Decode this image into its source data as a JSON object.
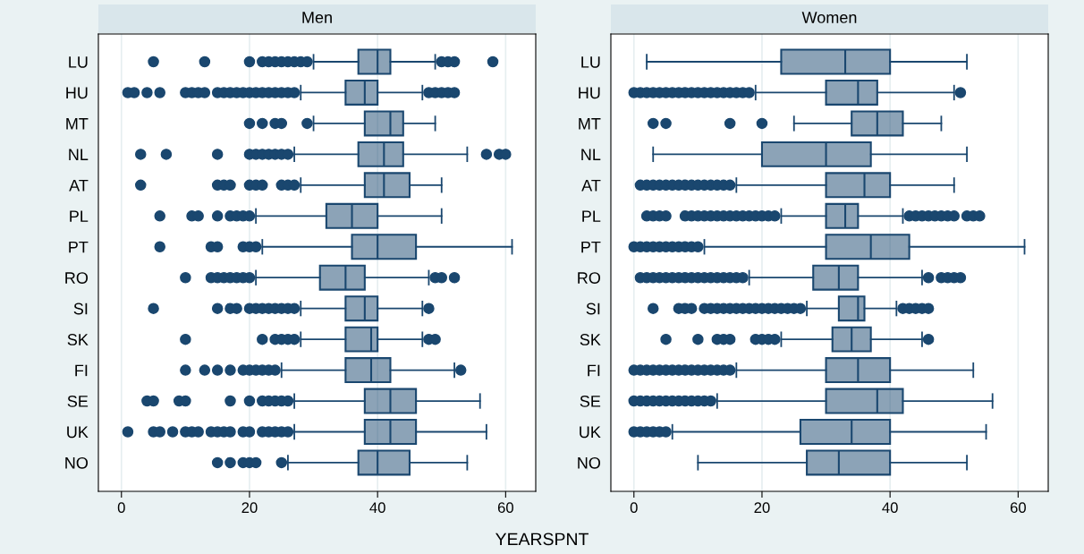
{
  "chart_data": [
    {
      "type": "box",
      "title": "Men",
      "xlabel": "YEARSPNT",
      "orientation": "horizontal",
      "color": "#1a476f",
      "grid": "x",
      "marker": "circle",
      "xlim": [
        -3.6,
        64.7
      ],
      "xticks": [
        0,
        20,
        40,
        60
      ],
      "categories": [
        "LU",
        "HU",
        "MT",
        "NL",
        "AT",
        "PL",
        "PT",
        "RO",
        "SI",
        "SK",
        "FI",
        "SE",
        "UK",
        "NO"
      ],
      "boxes": [
        {
          "low": 30,
          "q1": 37,
          "median": 40,
          "q3": 42,
          "high": 49,
          "outliers": [
            5,
            13,
            20,
            22,
            23,
            24,
            25,
            26,
            27,
            28,
            29,
            50,
            51,
            52,
            58
          ]
        },
        {
          "low": 28,
          "q1": 35,
          "median": 38,
          "q3": 40,
          "high": 47,
          "outliers": [
            1,
            2,
            4,
            6,
            10,
            11,
            12,
            13,
            15,
            16,
            17,
            18,
            19,
            20,
            21,
            22,
            23,
            24,
            25,
            26,
            27,
            48,
            49,
            50,
            51,
            52
          ]
        },
        {
          "low": 30,
          "q1": 38,
          "median": 42,
          "q3": 44,
          "high": 49,
          "outliers": [
            20,
            22,
            24,
            25,
            29
          ]
        },
        {
          "low": 27,
          "q1": 37,
          "median": 41,
          "q3": 44,
          "high": 54,
          "outliers": [
            3,
            7,
            15,
            20,
            21,
            22,
            23,
            24,
            25,
            26,
            57,
            59,
            60
          ]
        },
        {
          "low": 28,
          "q1": 38,
          "median": 41,
          "q3": 45,
          "high": 50,
          "outliers": [
            3,
            15,
            16,
            17,
            20,
            21,
            22,
            25,
            26,
            27
          ]
        },
        {
          "low": 21,
          "q1": 32,
          "median": 36,
          "q3": 40,
          "high": 50,
          "outliers": [
            6,
            11,
            12,
            15,
            17,
            18,
            19,
            20
          ]
        },
        {
          "low": 22,
          "q1": 36,
          "median": 40,
          "q3": 46,
          "high": 61,
          "outliers": [
            6,
            14,
            15,
            19,
            20,
            21
          ]
        },
        {
          "low": 21,
          "q1": 31,
          "median": 35,
          "q3": 38,
          "high": 48,
          "outliers": [
            10,
            14,
            15,
            16,
            17,
            18,
            19,
            20,
            49,
            50,
            52
          ]
        },
        {
          "low": 28,
          "q1": 35,
          "median": 38,
          "q3": 40,
          "high": 47,
          "outliers": [
            5,
            15,
            17,
            18,
            20,
            21,
            22,
            23,
            24,
            25,
            26,
            27,
            48
          ]
        },
        {
          "low": 28,
          "q1": 35,
          "median": 39,
          "q3": 40,
          "high": 47,
          "outliers": [
            10,
            22,
            24,
            25,
            26,
            27,
            48,
            49
          ]
        },
        {
          "low": 25,
          "q1": 35,
          "median": 39,
          "q3": 42,
          "high": 52,
          "outliers": [
            10,
            13,
            15,
            17,
            19,
            20,
            21,
            22,
            23,
            24,
            53
          ]
        },
        {
          "low": 27,
          "q1": 38,
          "median": 42,
          "q3": 46,
          "high": 56,
          "outliers": [
            4,
            5,
            9,
            10,
            17,
            20,
            22,
            23,
            24,
            25,
            26
          ]
        },
        {
          "low": 27,
          "q1": 38,
          "median": 42,
          "q3": 46,
          "high": 57,
          "outliers": [
            1,
            5,
            6,
            8,
            10,
            11,
            12,
            14,
            15,
            16,
            17,
            19,
            20,
            22,
            23,
            24,
            25,
            26
          ]
        },
        {
          "low": 26,
          "q1": 37,
          "median": 40,
          "q3": 45,
          "high": 54,
          "outliers": [
            15,
            17,
            19,
            20,
            21,
            25
          ]
        }
      ]
    },
    {
      "type": "box",
      "title": "Women",
      "orientation": "horizontal",
      "color": "#1a476f",
      "grid": "x",
      "marker": "circle",
      "xlim": [
        -3.6,
        64.7
      ],
      "xticks": [
        0,
        20,
        40,
        60
      ],
      "categories": [
        "LU",
        "HU",
        "MT",
        "NL",
        "AT",
        "PL",
        "PT",
        "RO",
        "SI",
        "SK",
        "FI",
        "SE",
        "UK",
        "NO"
      ],
      "boxes": [
        {
          "low": 2,
          "q1": 23,
          "median": 33,
          "q3": 40,
          "high": 52
        },
        {
          "low": 19,
          "q1": 30,
          "median": 35,
          "q3": 38,
          "high": 50,
          "outliers": [
            0,
            1,
            2,
            3,
            4,
            5,
            6,
            7,
            8,
            9,
            10,
            11,
            12,
            13,
            14,
            15,
            16,
            17,
            18,
            51
          ]
        },
        {
          "low": 25,
          "q1": 34,
          "median": 38,
          "q3": 42,
          "high": 48,
          "outliers": [
            3,
            5,
            15,
            20
          ]
        },
        {
          "low": 3,
          "q1": 20,
          "median": 30,
          "q3": 37,
          "high": 52
        },
        {
          "low": 16,
          "q1": 30,
          "median": 36,
          "q3": 40,
          "high": 50,
          "outliers": [
            1,
            2,
            3,
            4,
            5,
            6,
            7,
            8,
            9,
            10,
            11,
            12,
            13,
            14,
            15
          ]
        },
        {
          "low": 23,
          "q1": 30,
          "median": 33,
          "q3": 35,
          "high": 42,
          "outliers": [
            2,
            3,
            4,
            5,
            8,
            9,
            10,
            11,
            12,
            13,
            14,
            15,
            16,
            17,
            18,
            19,
            20,
            21,
            22,
            43,
            44,
            45,
            46,
            47,
            48,
            49,
            50,
            52,
            53,
            54
          ]
        },
        {
          "low": 11,
          "q1": 30,
          "median": 37,
          "q3": 43,
          "high": 61,
          "outliers": [
            0,
            1,
            2,
            3,
            4,
            5,
            6,
            7,
            8,
            9,
            10
          ]
        },
        {
          "low": 18,
          "q1": 28,
          "median": 32,
          "q3": 35,
          "high": 45,
          "outliers": [
            1,
            2,
            3,
            4,
            5,
            6,
            7,
            8,
            9,
            10,
            11,
            12,
            13,
            14,
            15,
            16,
            17,
            46,
            48,
            49,
            50,
            51
          ]
        },
        {
          "low": 27,
          "q1": 32,
          "median": 35,
          "q3": 36,
          "high": 41,
          "outliers": [
            3,
            7,
            8,
            9,
            11,
            12,
            13,
            14,
            15,
            16,
            17,
            18,
            19,
            20,
            21,
            22,
            23,
            24,
            25,
            26,
            42,
            43,
            44,
            45,
            46
          ]
        },
        {
          "low": 23,
          "q1": 31,
          "median": 34,
          "q3": 37,
          "high": 45,
          "outliers": [
            5,
            10,
            13,
            14,
            15,
            19,
            20,
            21,
            22,
            46
          ]
        },
        {
          "low": 16,
          "q1": 30,
          "median": 35,
          "q3": 40,
          "high": 53,
          "outliers": [
            0,
            1,
            2,
            3,
            4,
            5,
            6,
            7,
            8,
            9,
            10,
            11,
            12,
            13,
            14,
            15
          ]
        },
        {
          "low": 13,
          "q1": 30,
          "median": 38,
          "q3": 42,
          "high": 56,
          "outliers": [
            0,
            1,
            2,
            3,
            4,
            5,
            6,
            7,
            8,
            9,
            10,
            11,
            12
          ]
        },
        {
          "low": 6,
          "q1": 26,
          "median": 34,
          "q3": 40,
          "high": 55,
          "outliers": [
            0,
            1,
            2,
            3,
            4,
            5
          ]
        },
        {
          "low": 10,
          "q1": 27,
          "median": 32,
          "q3": 40,
          "high": 52
        }
      ]
    }
  ]
}
